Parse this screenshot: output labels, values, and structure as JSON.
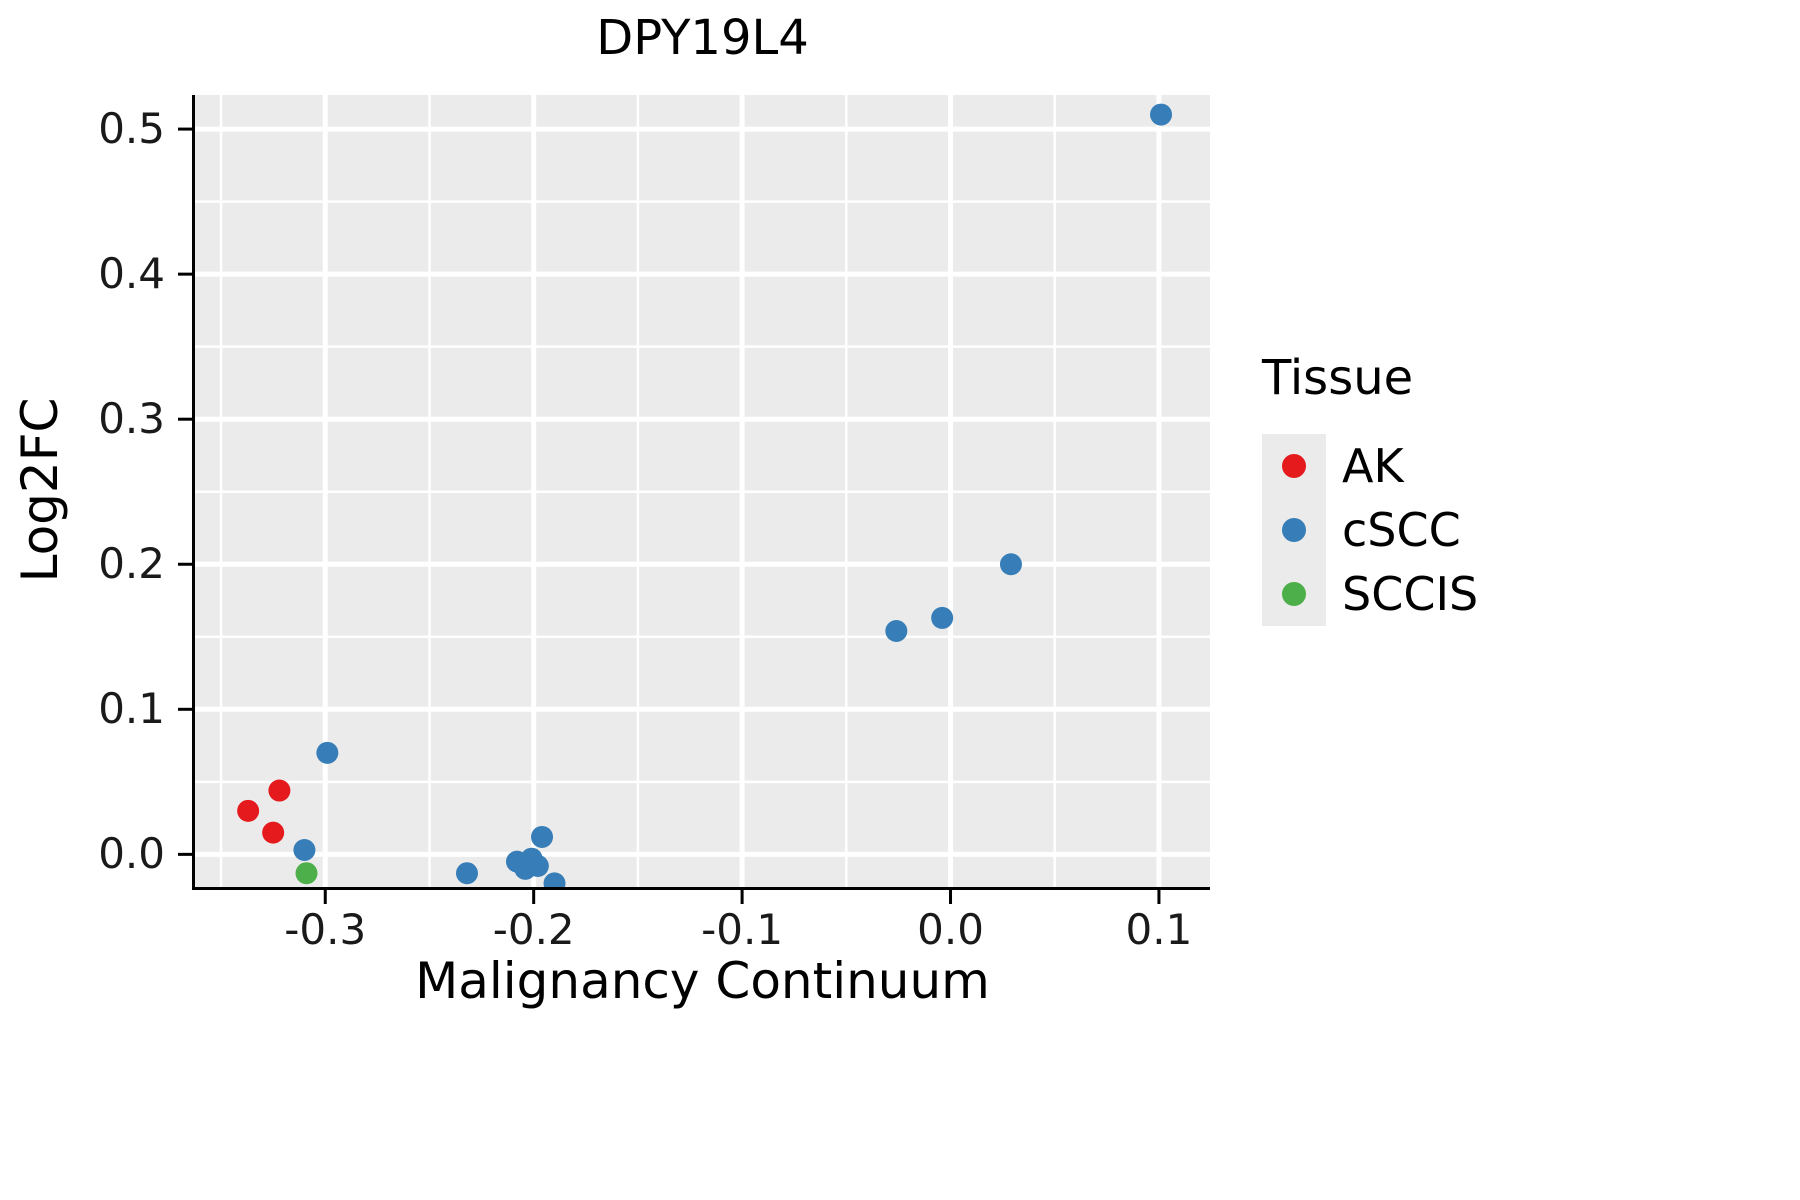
{
  "chart_data": {
    "type": "scatter",
    "title": "DPY19L4",
    "xlabel": "Malignancy Continuum",
    "ylabel": "Log2FC",
    "xlim": [
      -0.3625,
      0.1245
    ],
    "ylim": [
      -0.0225,
      0.5235
    ],
    "x_major_ticks": [
      -0.3,
      -0.2,
      -0.1,
      0.0,
      0.1
    ],
    "x_minor_ticks": [
      -0.35,
      -0.25,
      -0.15,
      -0.05,
      0.05
    ],
    "y_major_ticks": [
      0.0,
      0.1,
      0.2,
      0.3,
      0.4,
      0.5
    ],
    "y_minor_ticks": [
      0.05,
      0.15,
      0.25,
      0.35,
      0.45
    ],
    "grid": true,
    "panel_background": "#EBEBEB",
    "grid_color": "#FFFFFF",
    "axis_color": "#000000",
    "legend": {
      "title": "Tissue",
      "position": "right",
      "entries": [
        {
          "label": "AK",
          "color": "#E41A1C"
        },
        {
          "label": "cSCC",
          "color": "#377EB8"
        },
        {
          "label": "SCCIS",
          "color": "#4DAF4A"
        }
      ]
    },
    "series": [
      {
        "name": "AK",
        "color": "#E41A1C",
        "points": [
          [
            -0.337,
            0.03
          ],
          [
            -0.325,
            0.015
          ],
          [
            -0.322,
            0.044
          ]
        ]
      },
      {
        "name": "cSCC",
        "color": "#377EB8",
        "points": [
          [
            -0.31,
            0.003
          ],
          [
            -0.299,
            0.07
          ],
          [
            -0.232,
            -0.013
          ],
          [
            -0.208,
            -0.005
          ],
          [
            -0.204,
            -0.01
          ],
          [
            -0.201,
            -0.003
          ],
          [
            -0.198,
            -0.008
          ],
          [
            -0.196,
            0.012
          ],
          [
            -0.19,
            -0.02
          ],
          [
            -0.026,
            0.154
          ],
          [
            -0.004,
            0.163
          ],
          [
            0.029,
            0.2
          ],
          [
            0.101,
            0.51
          ]
        ]
      },
      {
        "name": "SCCIS",
        "color": "#4DAF4A",
        "points": [
          [
            -0.309,
            -0.013
          ]
        ]
      }
    ]
  }
}
